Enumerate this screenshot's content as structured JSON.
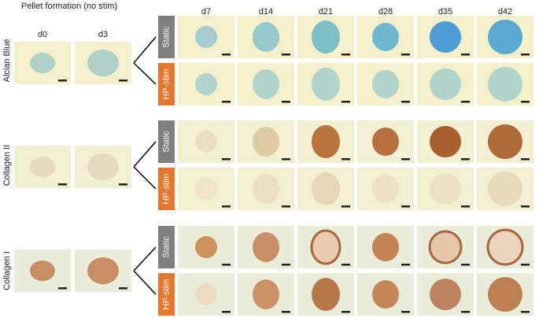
{
  "header": {
    "title": "Pellet formation (no stim)"
  },
  "pellet_days": [
    "d0",
    "d3"
  ],
  "time_days": [
    "d7",
    "d14",
    "d21",
    "d28",
    "d35",
    "d42"
  ],
  "stains": [
    {
      "label": "Alcian Blue",
      "conditions": [
        "Static",
        "HP-stim"
      ]
    },
    {
      "label": "Collagen II",
      "conditions": [
        "Static",
        "HP-stim"
      ]
    },
    {
      "label": "Collagen I",
      "conditions": [
        "Static",
        "HP-stim"
      ]
    }
  ]
}
